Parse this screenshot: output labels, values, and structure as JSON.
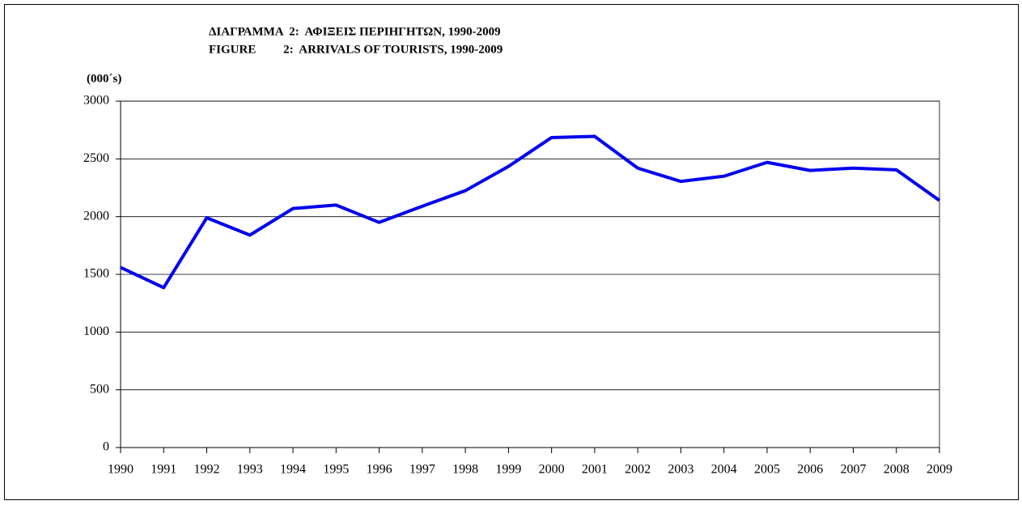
{
  "chart_data": {
    "type": "line",
    "title": [
      "ΔΙΑΓΡΑΜΜΑ  2:  ΑΦΙΞΕΙΣ ΠΕΡΙΗΓΗΤΩΝ, 1990-2009",
      "FIGURE         2:  ARRIVALS OF TOURISTS, 1990-2009"
    ],
    "y_axis_label": "(000´s)",
    "categories": [
      "1990",
      "1991",
      "1992",
      "1993",
      "1994",
      "1995",
      "1996",
      "1997",
      "1998",
      "1999",
      "2000",
      "2001",
      "2002",
      "2003",
      "2004",
      "2005",
      "2006",
      "2007",
      "2008",
      "2009"
    ],
    "series": [
      {
        "name": "Arrivals of tourists",
        "color": "#0000ee",
        "values": [
          1560,
          1385,
          1990,
          1840,
          2070,
          2100,
          1950,
          2090,
          2225,
          2435,
          2685,
          2695,
          2420,
          2305,
          2350,
          2470,
          2400,
          2420,
          2405,
          2140
        ]
      }
    ],
    "ylim": [
      0,
      3000
    ],
    "yticks": [
      0,
      500,
      1000,
      1500,
      2000,
      2500,
      3000
    ],
    "grid": true
  }
}
